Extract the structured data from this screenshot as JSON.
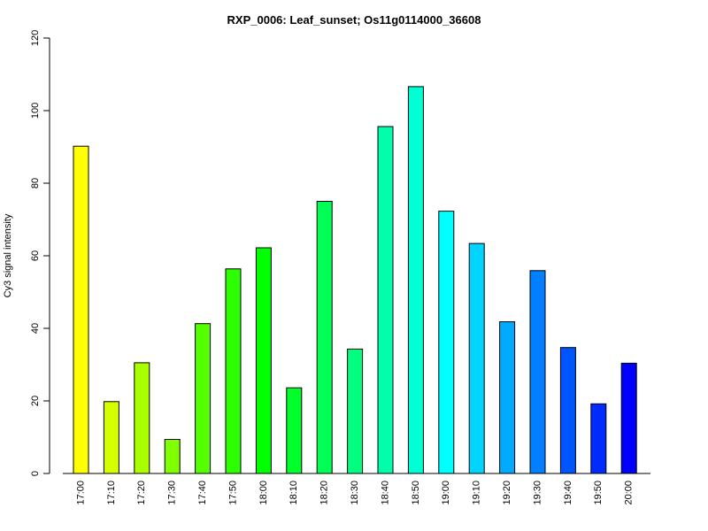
{
  "chart_data": {
    "type": "bar",
    "title": "RXP_0006: Leaf_sunset; Os11g0114000_36608",
    "xlabel": "",
    "ylabel": "Cy3 signal intensity",
    "ylim": [
      0,
      120
    ],
    "yticks": [
      0,
      20,
      40,
      60,
      80,
      100,
      120
    ],
    "grid": false,
    "categories": [
      "17:00",
      "17:10",
      "17:20",
      "17:30",
      "17:40",
      "17:50",
      "18:00",
      "18:10",
      "18:20",
      "18:30",
      "18:40",
      "18:50",
      "19:00",
      "19:10",
      "19:20",
      "19:30",
      "19:40",
      "19:50",
      "20:00"
    ],
    "values": [
      90.2,
      19.8,
      30.5,
      9.4,
      41.3,
      56.4,
      62.2,
      23.6,
      75.0,
      34.3,
      95.6,
      106.6,
      72.3,
      63.4,
      41.8,
      55.9,
      34.7,
      19.2,
      30.4
    ],
    "colors": [
      "#FFFF00",
      "#D4FF00",
      "#AAFF00",
      "#80FF00",
      "#55FF00",
      "#2BFF00",
      "#00FF00",
      "#00FF2B",
      "#00FF55",
      "#00FF80",
      "#00FFAA",
      "#00FFD4",
      "#00FFFF",
      "#00D4FF",
      "#00AAFF",
      "#0080FF",
      "#0055FF",
      "#002BFF",
      "#0000FF"
    ]
  }
}
